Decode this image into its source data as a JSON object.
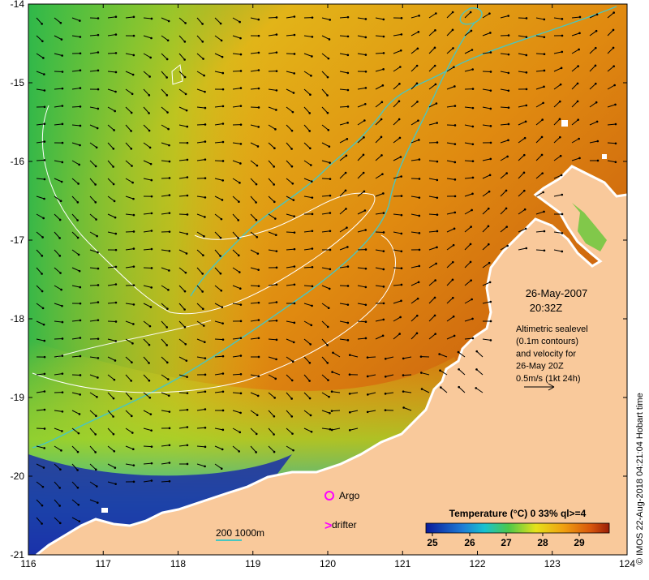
{
  "map": {
    "lon_ticks": [
      "116",
      "117",
      "118",
      "119",
      "120",
      "121",
      "122",
      "123",
      "124"
    ],
    "lat_ticks": [
      "-14",
      "-15",
      "-16",
      "-17",
      "-18",
      "-19",
      "-20",
      "-21"
    ]
  },
  "annotation": {
    "date": "26-May-2007",
    "time": "20:32Z",
    "desc_lines": [
      "Altimetric sealevel",
      "(0.1m contours)",
      "and velocity for",
      "26-May 20Z",
      "0.5m/s (1kt 24h)"
    ]
  },
  "legend": {
    "argo_label": "Argo",
    "drifter_label": "drifter",
    "drifter_symbol": ">",
    "contour_label": "200  1000m",
    "colorbar_title": "Temperature (°C) 0 33% ql>=4",
    "colorbar_ticks": [
      "25",
      "26",
      "27",
      "28",
      "29"
    ]
  },
  "credit": "© IMOS 22-Aug-2018 04:21:04 Hobart time",
  "colors": {
    "land": "#f9c99b",
    "contour_200_1000m": "#49c6c0",
    "argo": "#ff00ff",
    "sealevel_contour": "#ffffff"
  }
}
